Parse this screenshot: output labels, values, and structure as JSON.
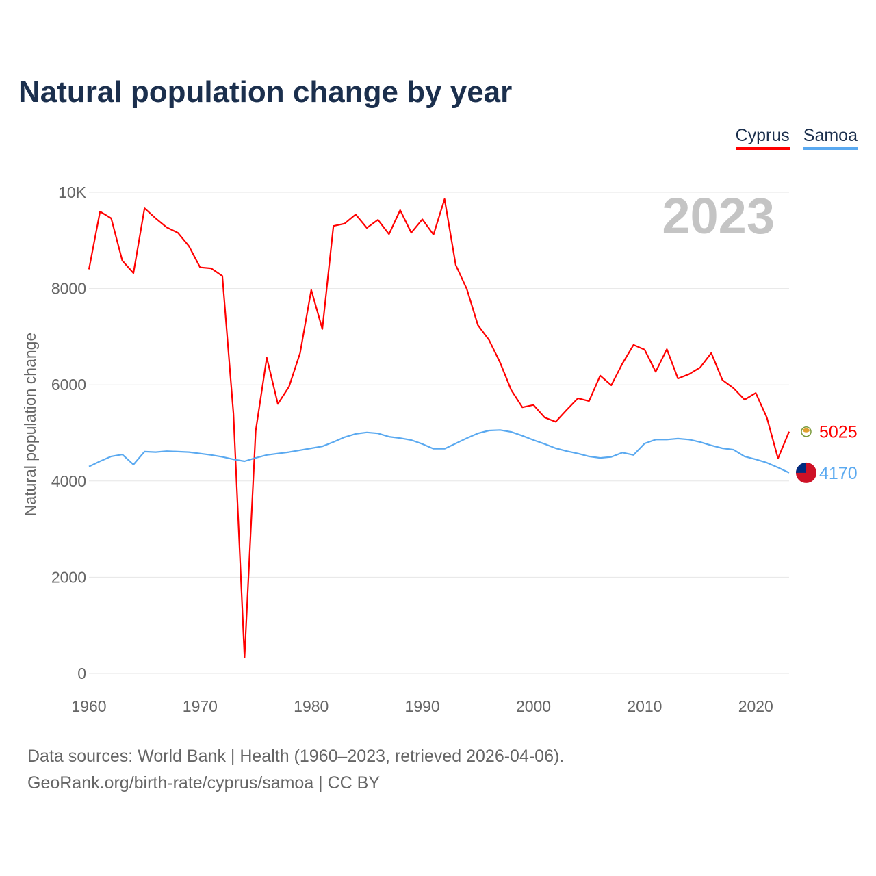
{
  "title": "Natural population change by year",
  "legend": [
    {
      "label": "Cyprus",
      "color": "#ff0000"
    },
    {
      "label": "Samoa",
      "color": "#5aa9f0"
    }
  ],
  "source_line1": "Data sources: World Bank | Health (1960–2023, retrieved 2026-04-06).",
  "source_line2": "GeoRank.org/birth-rate/cyprus/samoa | CC BY",
  "chart_data": {
    "type": "line",
    "title": "Natural population change by year",
    "ylabel": "Natural population change",
    "xlabel": "",
    "year_label": "2023",
    "xlim": [
      1960,
      2023
    ],
    "ylim": [
      0,
      10000
    ],
    "x_ticks": [
      1960,
      1970,
      1980,
      1990,
      2000,
      2010,
      2020
    ],
    "y_ticks": [
      {
        "v": 0,
        "label": "0"
      },
      {
        "v": 2000,
        "label": "2000"
      },
      {
        "v": 4000,
        "label": "4000"
      },
      {
        "v": 6000,
        "label": "6000"
      },
      {
        "v": 8000,
        "label": "8000"
      },
      {
        "v": 10000,
        "label": "10K"
      }
    ],
    "grid": true,
    "legend_position": "top-right",
    "x_start": 1960,
    "series": [
      {
        "name": "Cyprus",
        "color": "#ff0000",
        "end_label": "5025",
        "values": [
          8400,
          9600,
          9460,
          8580,
          8320,
          9670,
          9460,
          9270,
          9160,
          8880,
          8440,
          8420,
          8260,
          5400,
          330,
          5040,
          6560,
          5600,
          5960,
          6660,
          7970,
          7160,
          9300,
          9350,
          9540,
          9260,
          9430,
          9130,
          9630,
          9160,
          9440,
          9120,
          9860,
          8490,
          7990,
          7240,
          6930,
          6460,
          5890,
          5530,
          5580,
          5320,
          5230,
          5480,
          5720,
          5660,
          6190,
          5990,
          6440,
          6830,
          6730,
          6270,
          6740,
          6130,
          6220,
          6360,
          6660,
          6100,
          5930,
          5690,
          5830,
          5320,
          4470,
          5025
        ]
      },
      {
        "name": "Samoa",
        "color": "#5aa9f0",
        "end_label": "4170",
        "values": [
          4300,
          4410,
          4510,
          4550,
          4340,
          4610,
          4600,
          4620,
          4610,
          4600,
          4570,
          4540,
          4500,
          4450,
          4410,
          4480,
          4540,
          4570,
          4600,
          4640,
          4680,
          4720,
          4810,
          4910,
          4980,
          5010,
          4990,
          4920,
          4890,
          4850,
          4770,
          4670,
          4670,
          4780,
          4890,
          4990,
          5050,
          5060,
          5020,
          4940,
          4850,
          4770,
          4680,
          4620,
          4570,
          4510,
          4480,
          4500,
          4590,
          4540,
          4780,
          4860,
          4860,
          4880,
          4860,
          4810,
          4740,
          4680,
          4650,
          4510,
          4450,
          4380,
          4280,
          4170
        ]
      }
    ]
  }
}
